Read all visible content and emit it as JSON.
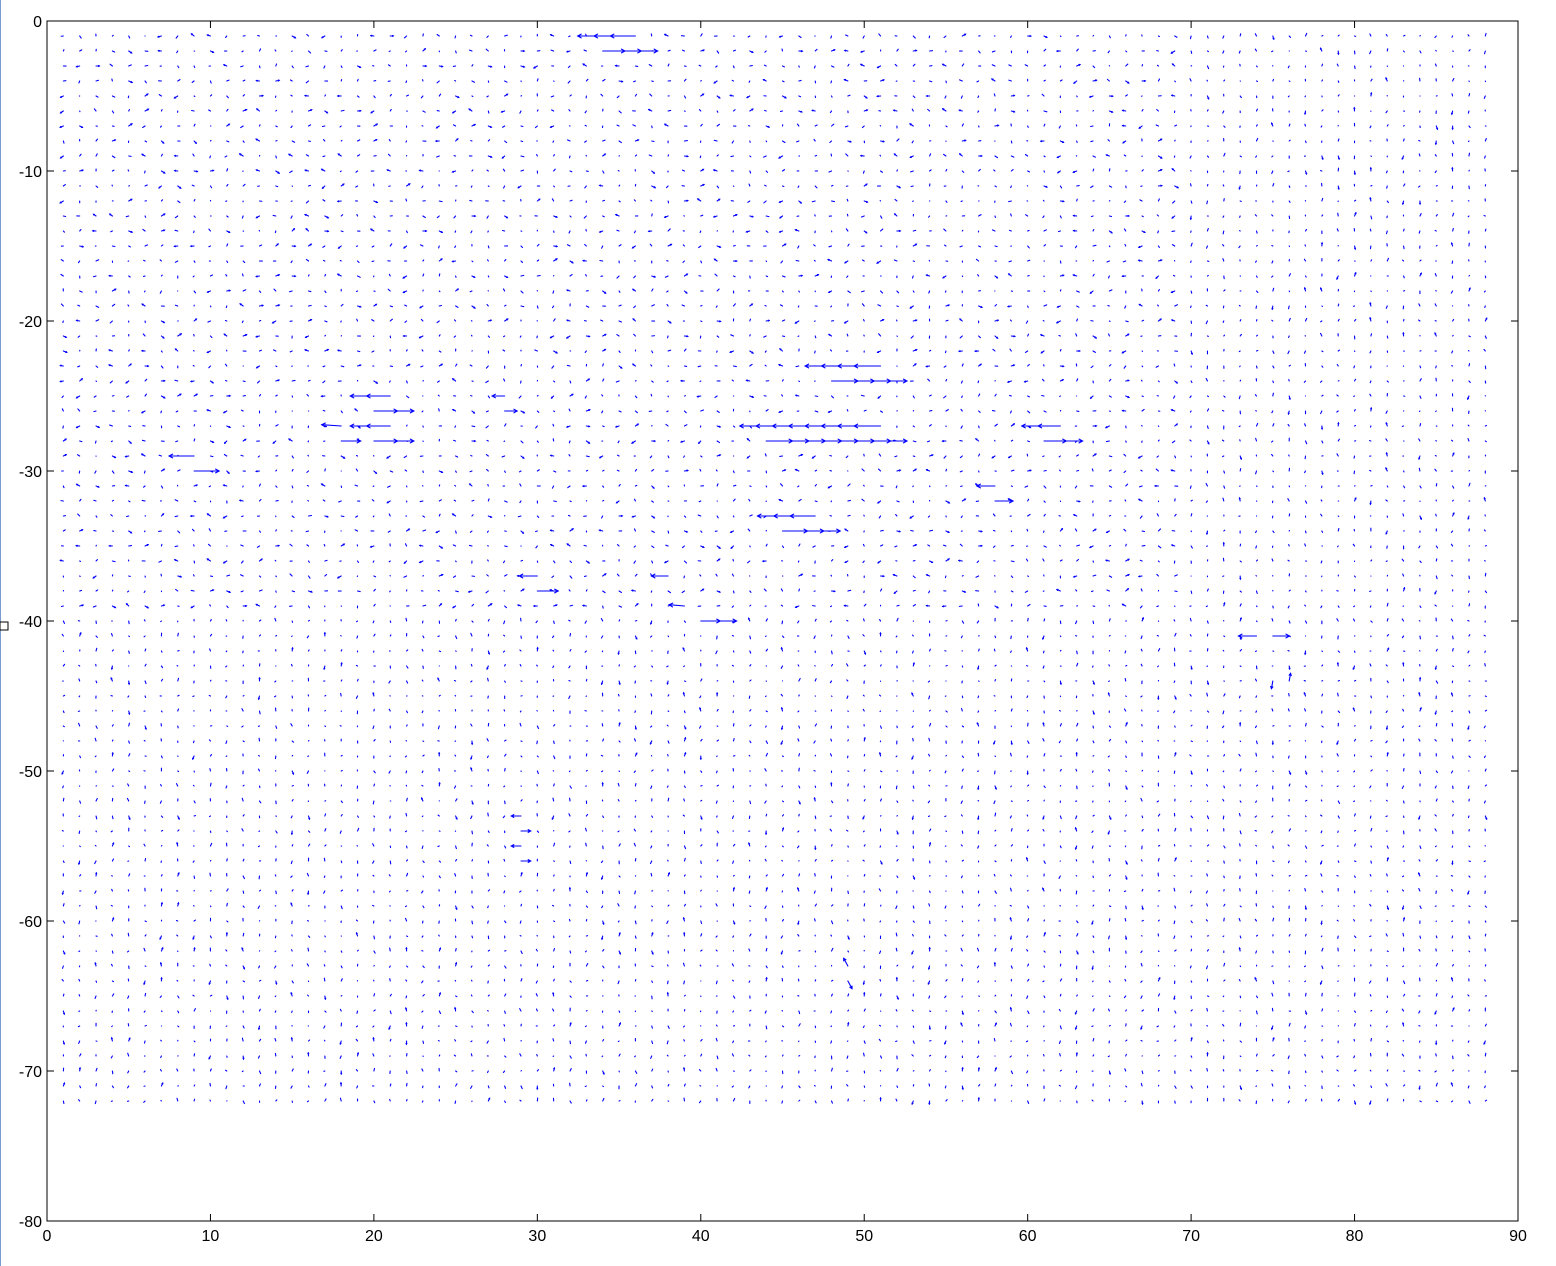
{
  "chart_data": {
    "type": "quiver",
    "title": "",
    "xlabel": "",
    "ylabel": "",
    "xlim": [
      0,
      90
    ],
    "ylim": [
      -80,
      0
    ],
    "grid": false,
    "legend": "none",
    "x_ticks": [
      0,
      10,
      20,
      30,
      40,
      50,
      60,
      70,
      80,
      90
    ],
    "y_ticks": [
      0,
      -10,
      -20,
      -30,
      -40,
      -50,
      -60,
      -70,
      -80
    ],
    "x_tick_labels": [
      "0",
      "10",
      "20",
      "30",
      "40",
      "50",
      "60",
      "70",
      "80",
      "90"
    ],
    "y_tick_labels": [
      "0",
      "-10",
      "-20",
      "-30",
      "-40",
      "-50",
      "-60",
      "-70",
      "-80"
    ],
    "grid_x_range": [
      1,
      88
    ],
    "grid_y_range": [
      -72,
      -1
    ],
    "grid_step": 1,
    "arrow_color": "#0000ff",
    "strong_vectors": [
      {
        "x": 34,
        "y": -1,
        "u": -1.8,
        "v": 0
      },
      {
        "x": 35,
        "y": -1,
        "u": -1.8,
        "v": 0
      },
      {
        "x": 36,
        "y": -1,
        "u": -1.8,
        "v": 0
      },
      {
        "x": 34,
        "y": -2,
        "u": 1.6,
        "v": 0
      },
      {
        "x": 35,
        "y": -2,
        "u": 1.6,
        "v": 0
      },
      {
        "x": 36,
        "y": -2,
        "u": 1.6,
        "v": 0
      },
      {
        "x": 48,
        "y": -23,
        "u": -1.9,
        "v": 0
      },
      {
        "x": 49,
        "y": -23,
        "u": -1.9,
        "v": 0
      },
      {
        "x": 50,
        "y": -23,
        "u": -1.9,
        "v": 0
      },
      {
        "x": 51,
        "y": -23,
        "u": -1.9,
        "v": 0
      },
      {
        "x": 48,
        "y": -24,
        "u": 1.9,
        "v": 0
      },
      {
        "x": 49,
        "y": -24,
        "u": 1.9,
        "v": 0
      },
      {
        "x": 50,
        "y": -24,
        "u": 1.9,
        "v": 0
      },
      {
        "x": 51,
        "y": -24,
        "u": 1.9,
        "v": 0
      },
      {
        "x": 20,
        "y": -25,
        "u": -1.7,
        "v": 0
      },
      {
        "x": 21,
        "y": -25,
        "u": -1.7,
        "v": 0
      },
      {
        "x": 20,
        "y": -26,
        "u": 1.7,
        "v": 0
      },
      {
        "x": 21,
        "y": -26,
        "u": 1.7,
        "v": 0
      },
      {
        "x": 20,
        "y": -27,
        "u": -1.7,
        "v": 0
      },
      {
        "x": 21,
        "y": -27,
        "u": -1.7,
        "v": 0
      },
      {
        "x": 20,
        "y": -28,
        "u": 1.7,
        "v": 0
      },
      {
        "x": 21,
        "y": -28,
        "u": 1.7,
        "v": 0
      },
      {
        "x": 18,
        "y": -27,
        "u": -1.4,
        "v": 0.1
      },
      {
        "x": 18,
        "y": -28,
        "u": 1.4,
        "v": 0
      },
      {
        "x": 28,
        "y": -25,
        "u": -0.9,
        "v": 0
      },
      {
        "x": 28,
        "y": -26,
        "u": 0.9,
        "v": 0
      },
      {
        "x": 9,
        "y": -29,
        "u": -1.8,
        "v": 0
      },
      {
        "x": 9,
        "y": -30,
        "u": 1.8,
        "v": 0
      },
      {
        "x": 44,
        "y": -27,
        "u": -1.9,
        "v": 0
      },
      {
        "x": 45,
        "y": -27,
        "u": -1.9,
        "v": 0
      },
      {
        "x": 46,
        "y": -27,
        "u": -1.9,
        "v": 0
      },
      {
        "x": 47,
        "y": -27,
        "u": -1.9,
        "v": 0
      },
      {
        "x": 48,
        "y": -27,
        "u": -1.9,
        "v": 0
      },
      {
        "x": 49,
        "y": -27,
        "u": -1.9,
        "v": 0
      },
      {
        "x": 50,
        "y": -27,
        "u": -1.9,
        "v": 0
      },
      {
        "x": 51,
        "y": -27,
        "u": -1.9,
        "v": 0
      },
      {
        "x": 44,
        "y": -28,
        "u": 1.9,
        "v": 0
      },
      {
        "x": 45,
        "y": -28,
        "u": 1.9,
        "v": 0
      },
      {
        "x": 46,
        "y": -28,
        "u": 1.9,
        "v": 0
      },
      {
        "x": 47,
        "y": -28,
        "u": 1.9,
        "v": 0
      },
      {
        "x": 48,
        "y": -28,
        "u": 1.9,
        "v": 0
      },
      {
        "x": 49,
        "y": -28,
        "u": 1.9,
        "v": 0
      },
      {
        "x": 50,
        "y": -28,
        "u": 1.9,
        "v": 0
      },
      {
        "x": 51,
        "y": -28,
        "u": 1.9,
        "v": 0
      },
      {
        "x": 61,
        "y": -27,
        "u": -1.6,
        "v": 0
      },
      {
        "x": 62,
        "y": -27,
        "u": -1.6,
        "v": 0
      },
      {
        "x": 61,
        "y": -28,
        "u": 1.6,
        "v": 0
      },
      {
        "x": 62,
        "y": -28,
        "u": 1.6,
        "v": 0
      },
      {
        "x": 58,
        "y": -31,
        "u": -1.3,
        "v": 0
      },
      {
        "x": 58,
        "y": -32,
        "u": 1.3,
        "v": 0
      },
      {
        "x": 45,
        "y": -33,
        "u": -1.8,
        "v": 0
      },
      {
        "x": 46,
        "y": -33,
        "u": -1.8,
        "v": 0
      },
      {
        "x": 47,
        "y": -33,
        "u": -1.8,
        "v": 0
      },
      {
        "x": 45,
        "y": -34,
        "u": 1.8,
        "v": 0
      },
      {
        "x": 46,
        "y": -34,
        "u": 1.8,
        "v": 0
      },
      {
        "x": 47,
        "y": -34,
        "u": 1.8,
        "v": 0
      },
      {
        "x": 30,
        "y": -37,
        "u": -1.3,
        "v": 0
      },
      {
        "x": 30,
        "y": -38,
        "u": 1.5,
        "v": 0
      },
      {
        "x": 38,
        "y": -37,
        "u": -1.2,
        "v": 0
      },
      {
        "x": 39,
        "y": -39,
        "u": -1.1,
        "v": 0.1
      },
      {
        "x": 40,
        "y": -40,
        "u": 1.4,
        "v": 0
      },
      {
        "x": 41,
        "y": -40,
        "u": 1.4,
        "v": 0
      },
      {
        "x": 74,
        "y": -41,
        "u": -1.3,
        "v": 0
      },
      {
        "x": 75,
        "y": -41,
        "u": 1.2,
        "v": 0
      },
      {
        "x": 76,
        "y": -44,
        "u": 0.1,
        "v": 0.6
      },
      {
        "x": 75,
        "y": -44,
        "u": -0.1,
        "v": -0.6
      },
      {
        "x": 29,
        "y": -53,
        "u": -0.7,
        "v": 0
      },
      {
        "x": 29,
        "y": -54,
        "u": 0.7,
        "v": 0
      },
      {
        "x": 29,
        "y": -55,
        "u": -0.7,
        "v": 0
      },
      {
        "x": 29,
        "y": -56,
        "u": 0.7,
        "v": 0
      },
      {
        "x": 49,
        "y": -63,
        "u": -0.3,
        "v": 0.6
      },
      {
        "x": 49,
        "y": -64,
        "u": 0.3,
        "v": -0.6
      }
    ]
  }
}
